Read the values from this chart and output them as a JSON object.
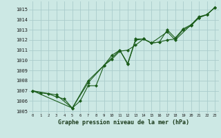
{
  "title": "Graphe pression niveau de la mer (hPa)",
  "bg_color": "#cce8e4",
  "grid_color": "#aacccc",
  "line_color": "#1a5c1a",
  "marker_color": "#1a5c1a",
  "xlim": [
    -0.5,
    23.5
  ],
  "ylim": [
    1004.8,
    1015.8
  ],
  "yticks": [
    1005,
    1006,
    1007,
    1008,
    1009,
    1010,
    1011,
    1012,
    1013,
    1014,
    1015
  ],
  "xticks": [
    0,
    1,
    2,
    3,
    4,
    5,
    6,
    7,
    8,
    9,
    10,
    11,
    12,
    13,
    14,
    15,
    16,
    17,
    18,
    19,
    20,
    21,
    22,
    23
  ],
  "series1_x": [
    0,
    1,
    2,
    3,
    4,
    5,
    6,
    7,
    8,
    9,
    10,
    11,
    12,
    13,
    14,
    15,
    16,
    17,
    18,
    19,
    20,
    21,
    22,
    23
  ],
  "series1_y": [
    1007.0,
    1006.8,
    1006.7,
    1006.4,
    1006.2,
    1005.3,
    1006.0,
    1007.5,
    1007.5,
    1009.5,
    1010.1,
    1010.9,
    1011.0,
    1011.5,
    1012.1,
    1011.7,
    1011.8,
    1012.0,
    1012.1,
    1013.0,
    1013.4,
    1014.2,
    1014.5,
    1015.2
  ],
  "series2_x": [
    0,
    3,
    5,
    7,
    9,
    10,
    11,
    12,
    13,
    14,
    15,
    16,
    17,
    18,
    19,
    20,
    21,
    22,
    23
  ],
  "series2_y": [
    1007.0,
    1006.6,
    1005.3,
    1007.8,
    1009.5,
    1010.5,
    1011.0,
    1009.6,
    1012.0,
    1012.1,
    1011.7,
    1011.8,
    1013.0,
    1012.2,
    1013.1,
    1013.5,
    1014.3,
    1014.5,
    1015.2
  ],
  "series3_x": [
    0,
    5,
    7,
    9,
    11,
    12,
    13,
    14,
    15,
    17,
    18,
    20,
    21,
    22,
    23
  ],
  "series3_y": [
    1007.0,
    1005.3,
    1008.0,
    1009.5,
    1011.0,
    1009.7,
    1012.1,
    1012.1,
    1011.7,
    1012.8,
    1012.0,
    1013.5,
    1014.2,
    1014.5,
    1015.2
  ],
  "ytick_fontsize": 5,
  "xtick_fontsize": 4,
  "xlabel_fontsize": 6,
  "linewidth": 0.8,
  "markersize": 2.2
}
